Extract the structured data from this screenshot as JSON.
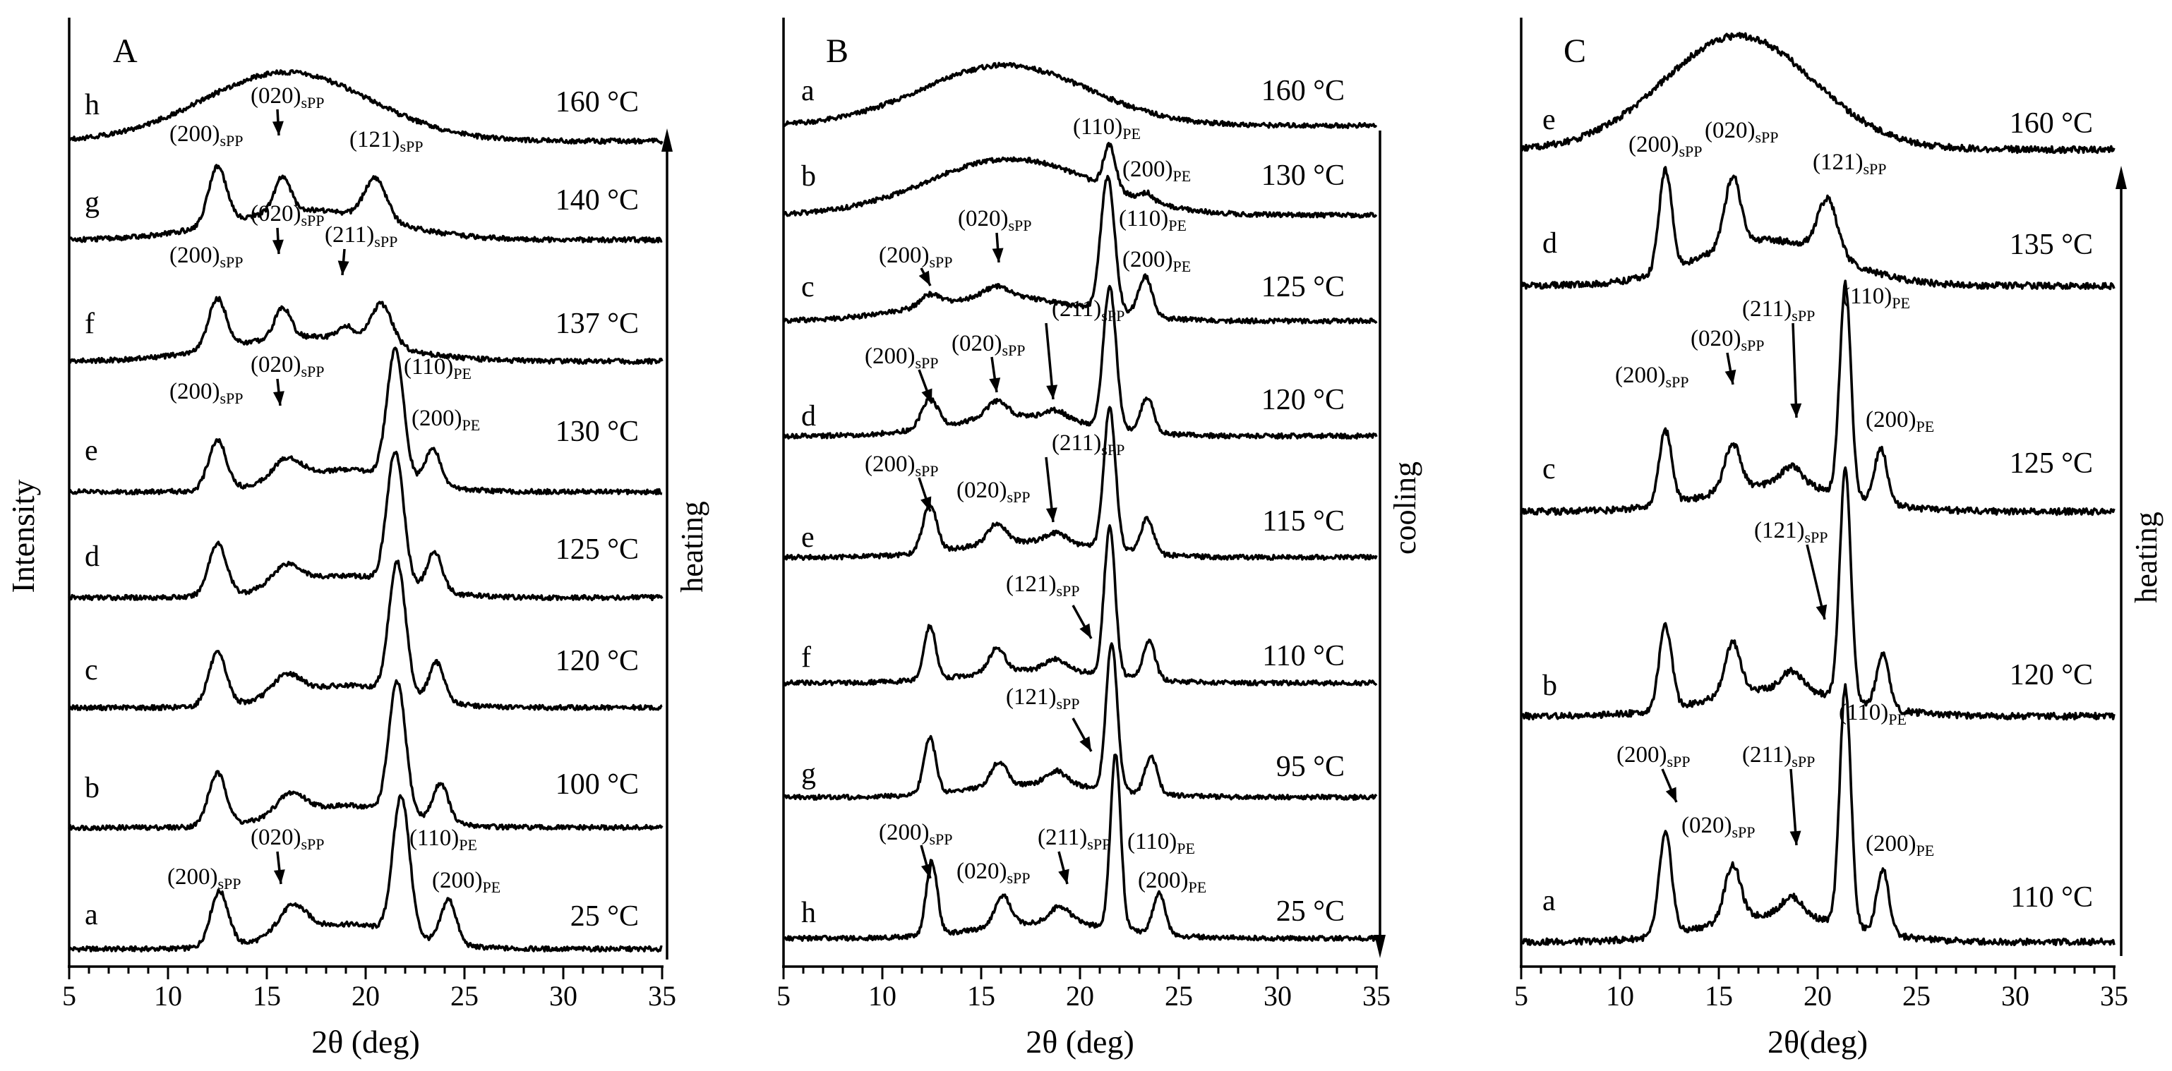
{
  "figure": {
    "y_axis_label": "Intensity"
  },
  "chart_data": [
    {
      "type": "line",
      "panel": "A",
      "xlabel": "2θ (deg)",
      "ylabel": "Intensity",
      "xlim": [
        5,
        35
      ],
      "xticks": [
        5,
        10,
        15,
        20,
        25,
        30,
        35
      ],
      "process": "heating",
      "series": [
        {
          "name": "a",
          "temperature": "25 °C",
          "peaks": [
            {
              "x": 12.6,
              "h": 0.4,
              "w": 0.45
            },
            {
              "x": 16.3,
              "h": 0.2,
              "w": 0.7
            },
            {
              "x": 21.8,
              "h": 1.0,
              "w": 0.42
            },
            {
              "x": 24.2,
              "h": 0.32,
              "w": 0.38
            }
          ],
          "broad": {
            "x": 19.0,
            "h": 0.18,
            "w": 3.0
          }
        },
        {
          "name": "b",
          "temperature": "100 °C",
          "peaks": [
            {
              "x": 12.5,
              "h": 0.38,
              "w": 0.45
            },
            {
              "x": 16.2,
              "h": 0.15,
              "w": 0.7
            },
            {
              "x": 21.6,
              "h": 0.95,
              "w": 0.42
            },
            {
              "x": 23.8,
              "h": 0.28,
              "w": 0.38
            }
          ],
          "broad": {
            "x": 19.0,
            "h": 0.16,
            "w": 3.0
          }
        },
        {
          "name": "c",
          "temperature": "120 °C",
          "peaks": [
            {
              "x": 12.5,
              "h": 0.38,
              "w": 0.45
            },
            {
              "x": 16.0,
              "h": 0.15,
              "w": 0.7
            },
            {
              "x": 21.6,
              "h": 0.95,
              "w": 0.42
            },
            {
              "x": 23.6,
              "h": 0.28,
              "w": 0.38
            }
          ],
          "broad": {
            "x": 19.0,
            "h": 0.16,
            "w": 3.0
          }
        },
        {
          "name": "d",
          "temperature": "125 °C",
          "peaks": [
            {
              "x": 12.5,
              "h": 0.38,
              "w": 0.45
            },
            {
              "x": 16.0,
              "h": 0.15,
              "w": 0.7
            },
            {
              "x": 21.5,
              "h": 0.95,
              "w": 0.42
            },
            {
              "x": 23.5,
              "h": 0.28,
              "w": 0.38
            }
          ],
          "broad": {
            "x": 19.0,
            "h": 0.16,
            "w": 3.0
          }
        },
        {
          "name": "e",
          "temperature": "130 °C",
          "peaks": [
            {
              "x": 12.5,
              "h": 0.36,
              "w": 0.45
            },
            {
              "x": 16.0,
              "h": 0.15,
              "w": 0.7
            },
            {
              "x": 21.5,
              "h": 0.92,
              "w": 0.42
            },
            {
              "x": 23.4,
              "h": 0.26,
              "w": 0.38
            }
          ],
          "broad": {
            "x": 19.0,
            "h": 0.16,
            "w": 3.0
          }
        },
        {
          "name": "f",
          "temperature": "137 °C",
          "peaks": [
            {
              "x": 12.5,
              "h": 0.36,
              "w": 0.45
            },
            {
              "x": 15.8,
              "h": 0.22,
              "w": 0.4
            },
            {
              "x": 19.0,
              "h": 0.1,
              "w": 0.4
            },
            {
              "x": 20.8,
              "h": 0.3,
              "w": 0.55
            }
          ],
          "broad": {
            "x": 17.0,
            "h": 0.18,
            "w": 4.0
          }
        },
        {
          "name": "g",
          "temperature": "140 °C",
          "peaks": [
            {
              "x": 12.5,
              "h": 0.42,
              "w": 0.45
            },
            {
              "x": 15.8,
              "h": 0.25,
              "w": 0.4
            },
            {
              "x": 20.5,
              "h": 0.3,
              "w": 0.55
            }
          ],
          "broad": {
            "x": 17.0,
            "h": 0.22,
            "w": 4.0
          }
        },
        {
          "name": "h",
          "temperature": "160 °C",
          "peaks": [],
          "broad": {
            "x": 16.0,
            "h": 0.5,
            "w": 4.2
          }
        }
      ],
      "annotations": [
        {
          "text": "(200)",
          "sub": "sPP"
        },
        {
          "text": "(020)",
          "sub": "sPP"
        },
        {
          "text": "(121)",
          "sub": "sPP"
        },
        {
          "text": "(020)",
          "sub": "sPP"
        },
        {
          "text": "(200)",
          "sub": "sPP"
        },
        {
          "text": "(211)",
          "sub": "sPP"
        },
        {
          "text": "(200)",
          "sub": "sPP"
        },
        {
          "text": "(020)",
          "sub": "sPP"
        },
        {
          "text": "(110)",
          "sub": "PE"
        },
        {
          "text": "(200)",
          "sub": "PE"
        },
        {
          "text": "(200)",
          "sub": "sPP"
        },
        {
          "text": "(020)",
          "sub": "sPP"
        },
        {
          "text": "(110)",
          "sub": "PE"
        },
        {
          "text": "(200)",
          "sub": "PE"
        }
      ]
    },
    {
      "type": "line",
      "panel": "B",
      "xlabel": "2θ (deg)",
      "xlim": [
        5,
        35
      ],
      "xticks": [
        5,
        10,
        15,
        20,
        25,
        30,
        35
      ],
      "process": "cooling",
      "series": [
        {
          "name": "a",
          "temperature": "160 °C",
          "peaks": [],
          "broad": {
            "x": 16.2,
            "h": 0.45,
            "w": 4.2
          }
        },
        {
          "name": "b",
          "temperature": "130 °C",
          "peaks": [
            {
              "x": 21.5,
              "h": 0.32,
              "w": 0.3
            },
            {
              "x": 23.4,
              "h": 0.06,
              "w": 0.3
            }
          ],
          "broad": {
            "x": 16.5,
            "h": 0.42,
            "w": 4.2
          }
        },
        {
          "name": "c",
          "temperature": "125 °C",
          "peaks": [
            {
              "x": 12.4,
              "h": 0.08,
              "w": 0.45
            },
            {
              "x": 15.8,
              "h": 0.08,
              "w": 0.6
            },
            {
              "x": 21.4,
              "h": 1.0,
              "w": 0.35
            },
            {
              "x": 23.3,
              "h": 0.3,
              "w": 0.35
            }
          ],
          "broad": {
            "x": 16.0,
            "h": 0.18,
            "w": 4.0
          }
        },
        {
          "name": "d",
          "temperature": "120 °C",
          "peaks": [
            {
              "x": 12.4,
              "h": 0.22,
              "w": 0.4
            },
            {
              "x": 15.8,
              "h": 0.12,
              "w": 0.5
            },
            {
              "x": 18.8,
              "h": 0.06,
              "w": 0.5
            },
            {
              "x": 21.5,
              "h": 1.05,
              "w": 0.32
            },
            {
              "x": 23.4,
              "h": 0.26,
              "w": 0.32
            }
          ],
          "broad": {
            "x": 17.0,
            "h": 0.15,
            "w": 3.5
          }
        },
        {
          "name": "e",
          "temperature": "115 °C",
          "peaks": [
            {
              "x": 12.4,
              "h": 0.35,
              "w": 0.35
            },
            {
              "x": 15.8,
              "h": 0.15,
              "w": 0.45
            },
            {
              "x": 18.8,
              "h": 0.07,
              "w": 0.5
            },
            {
              "x": 21.5,
              "h": 1.05,
              "w": 0.3
            },
            {
              "x": 23.4,
              "h": 0.26,
              "w": 0.32
            }
          ],
          "broad": {
            "x": 17.5,
            "h": 0.12,
            "w": 3.5
          }
        },
        {
          "name": "f",
          "temperature": "110 °C",
          "peaks": [
            {
              "x": 12.4,
              "h": 0.4,
              "w": 0.3
            },
            {
              "x": 15.8,
              "h": 0.18,
              "w": 0.4
            },
            {
              "x": 18.8,
              "h": 0.08,
              "w": 0.5
            },
            {
              "x": 21.5,
              "h": 1.1,
              "w": 0.28
            },
            {
              "x": 23.5,
              "h": 0.28,
              "w": 0.3
            }
          ],
          "broad": {
            "x": 18.0,
            "h": 0.1,
            "w": 3.5
          }
        },
        {
          "name": "g",
          "temperature": "95 °C",
          "peaks": [
            {
              "x": 12.4,
              "h": 0.42,
              "w": 0.3
            },
            {
              "x": 15.9,
              "h": 0.18,
              "w": 0.4
            },
            {
              "x": 18.8,
              "h": 0.1,
              "w": 0.5
            },
            {
              "x": 21.6,
              "h": 1.1,
              "w": 0.28
            },
            {
              "x": 23.6,
              "h": 0.28,
              "w": 0.3
            }
          ],
          "broad": {
            "x": 18.0,
            "h": 0.1,
            "w": 3.5
          }
        },
        {
          "name": "h",
          "temperature": "25 °C",
          "peaks": [
            {
              "x": 12.5,
              "h": 0.55,
              "w": 0.28
            },
            {
              "x": 16.1,
              "h": 0.22,
              "w": 0.4
            },
            {
              "x": 19.0,
              "h": 0.12,
              "w": 0.5
            },
            {
              "x": 21.8,
              "h": 1.3,
              "w": 0.26
            },
            {
              "x": 24.0,
              "h": 0.3,
              "w": 0.3
            }
          ],
          "broad": {
            "x": 18.5,
            "h": 0.12,
            "w": 3.5
          }
        }
      ],
      "annotations": [
        {
          "text": "(110)",
          "sub": "PE"
        },
        {
          "text": "(200)",
          "sub": "PE"
        },
        {
          "text": "(200)",
          "sub": "sPP"
        },
        {
          "text": "(020)",
          "sub": "sPP"
        },
        {
          "text": "(110)",
          "sub": "PE"
        },
        {
          "text": "(200)",
          "sub": "PE"
        },
        {
          "text": "(211)",
          "sub": "sPP"
        },
        {
          "text": "(200)",
          "sub": "sPP"
        },
        {
          "text": "(020)",
          "sub": "sPP"
        },
        {
          "text": "(211)",
          "sub": "sPP"
        },
        {
          "text": "(200)",
          "sub": "sPP"
        },
        {
          "text": "(020)",
          "sub": "sPP"
        },
        {
          "text": "(121)",
          "sub": "sPP"
        },
        {
          "text": "(121)",
          "sub": "sPP"
        },
        {
          "text": "(200)",
          "sub": "sPP"
        },
        {
          "text": "(020)",
          "sub": "sPP"
        },
        {
          "text": "(211)",
          "sub": "sPP"
        },
        {
          "text": "(110)",
          "sub": "PE"
        },
        {
          "text": "(200)",
          "sub": "PE"
        }
      ]
    },
    {
      "type": "line",
      "panel": "C",
      "xlabel": "2θ(deg)",
      "xlim": [
        5,
        35
      ],
      "xticks": [
        5,
        10,
        15,
        20,
        25,
        30,
        35
      ],
      "process": "heating",
      "series": [
        {
          "name": "a",
          "temperature": "110 °C",
          "peaks": [
            {
              "x": 12.3,
              "h": 0.55,
              "w": 0.32
            },
            {
              "x": 15.7,
              "h": 0.3,
              "w": 0.4
            },
            {
              "x": 18.7,
              "h": 0.1,
              "w": 0.5
            },
            {
              "x": 21.4,
              "h": 1.3,
              "w": 0.28
            },
            {
              "x": 23.3,
              "h": 0.35,
              "w": 0.3
            }
          ],
          "broad": {
            "x": 18.0,
            "h": 0.15,
            "w": 3.5
          }
        },
        {
          "name": "b",
          "temperature": "120 °C",
          "peaks": [
            {
              "x": 12.3,
              "h": 0.45,
              "w": 0.32
            },
            {
              "x": 15.7,
              "h": 0.28,
              "w": 0.4
            },
            {
              "x": 18.7,
              "h": 0.1,
              "w": 0.5
            },
            {
              "x": 21.4,
              "h": 1.25,
              "w": 0.28
            },
            {
              "x": 23.3,
              "h": 0.3,
              "w": 0.3
            }
          ],
          "broad": {
            "x": 18.0,
            "h": 0.15,
            "w": 3.5
          }
        },
        {
          "name": "c",
          "temperature": "125 °C",
          "peaks": [
            {
              "x": 12.3,
              "h": 0.4,
              "w": 0.32
            },
            {
              "x": 15.7,
              "h": 0.25,
              "w": 0.4
            },
            {
              "x": 18.7,
              "h": 0.1,
              "w": 0.5
            },
            {
              "x": 21.4,
              "h": 1.15,
              "w": 0.28
            },
            {
              "x": 23.2,
              "h": 0.3,
              "w": 0.3
            }
          ],
          "broad": {
            "x": 18.0,
            "h": 0.15,
            "w": 3.5
          }
        },
        {
          "name": "d",
          "temperature": "135 °C",
          "peaks": [
            {
              "x": 12.3,
              "h": 0.55,
              "w": 0.32
            },
            {
              "x": 15.7,
              "h": 0.38,
              "w": 0.4
            },
            {
              "x": 20.5,
              "h": 0.3,
              "w": 0.5
            }
          ],
          "broad": {
            "x": 17.5,
            "h": 0.25,
            "w": 3.5
          }
        },
        {
          "name": "e",
          "temperature": "160 °C",
          "peaks": [],
          "broad": {
            "x": 16.0,
            "h": 0.62,
            "w": 3.8
          }
        }
      ],
      "annotations": [
        {
          "text": "(200)",
          "sub": "sPP"
        },
        {
          "text": "(020)",
          "sub": "sPP"
        },
        {
          "text": "(121)",
          "sub": "sPP"
        },
        {
          "text": "(211)",
          "sub": "sPP"
        },
        {
          "text": "(110)",
          "sub": "PE"
        },
        {
          "text": "(020)",
          "sub": "sPP"
        },
        {
          "text": "(200)",
          "sub": "sPP"
        },
        {
          "text": "(200)",
          "sub": "PE"
        },
        {
          "text": "(121)",
          "sub": "sPP"
        },
        {
          "text": "(110)",
          "sub": "PE"
        },
        {
          "text": "(200)",
          "sub": "sPP"
        },
        {
          "text": "(211)",
          "sub": "sPP"
        },
        {
          "text": "(020)",
          "sub": "sPP"
        },
        {
          "text": "(200)",
          "sub": "PE"
        }
      ]
    }
  ]
}
